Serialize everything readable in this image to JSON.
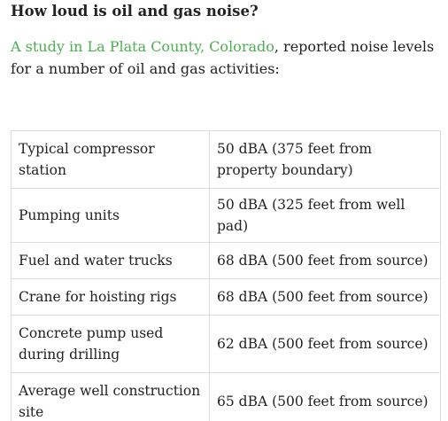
{
  "article": {
    "heading": "How loud is oil and gas noise?",
    "intro_link": "A study in La Plata County, Colorado",
    "intro_rest": ", reported noise levels for a number of oil and gas activities:",
    "colors": {
      "link": "#4caf50",
      "text": "#222222",
      "border": "#dcdcdc"
    }
  },
  "table": {
    "rows": [
      {
        "activity": "Typical compressor station",
        "level": "50 dBA (375 feet from property boundary)"
      },
      {
        "activity": "Pumping units",
        "level": "50 dBA (325 feet from well pad)"
      },
      {
        "activity": "Fuel and water trucks",
        "level": "68 dBA (500 feet from source)"
      },
      {
        "activity": "Crane for hoisting rigs",
        "level": "68 dBA (500 feet from source)"
      },
      {
        "activity": "Concrete pump used during drilling",
        "level": "62 dBA (500 feet from source)"
      },
      {
        "activity": "Average well construction site",
        "level": "65 dBA (500 feet from source)"
      }
    ]
  }
}
